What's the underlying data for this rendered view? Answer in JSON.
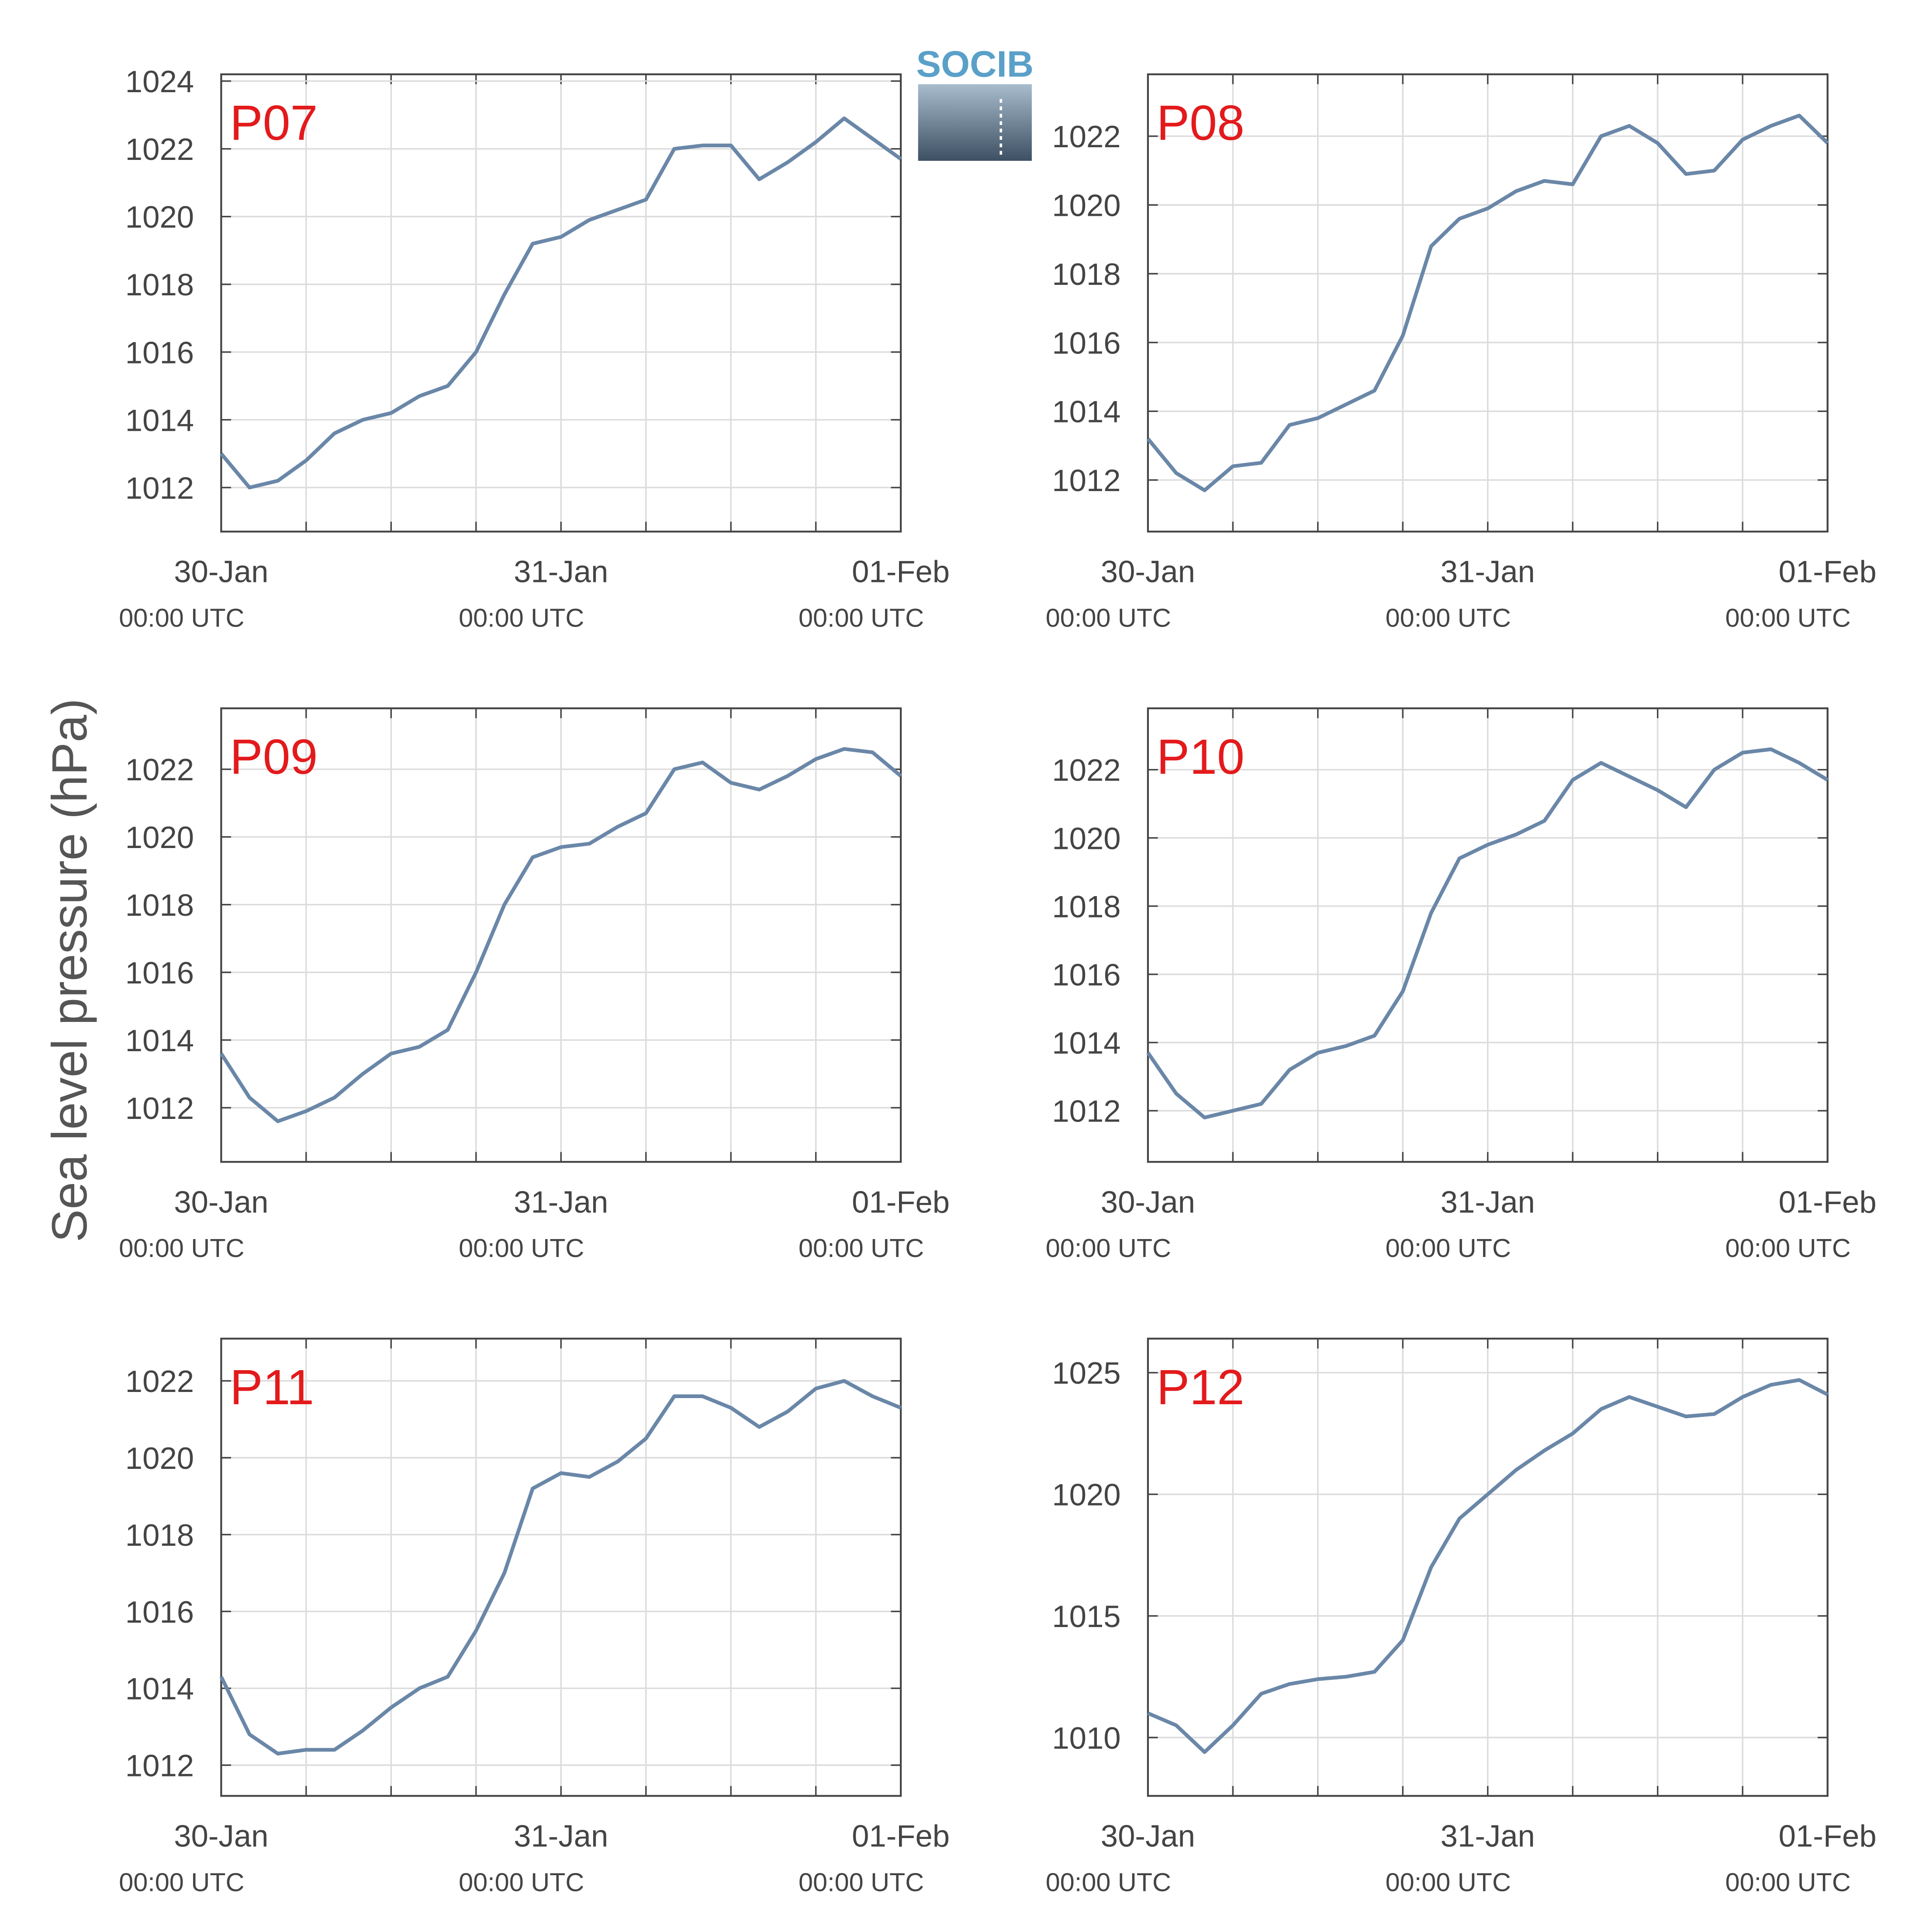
{
  "ylabel": "Sea level pressure (hPa)",
  "logo": "SOCIB",
  "chart_data": [
    {
      "type": "line",
      "title": "P07",
      "color": "#6a87a8",
      "x": [
        0,
        2,
        4,
        6,
        8,
        10,
        12,
        14,
        16,
        18,
        20,
        22,
        24,
        26,
        28,
        30,
        32,
        34,
        36,
        38,
        40,
        42,
        44,
        46,
        48
      ],
      "values": [
        1013.0,
        1012.0,
        1012.2,
        1012.8,
        1013.6,
        1014.0,
        1014.2,
        1014.7,
        1015.0,
        1016.0,
        1017.7,
        1019.2,
        1019.4,
        1019.9,
        1020.2,
        1020.5,
        1022.0,
        1022.1,
        1022.1,
        1021.1,
        1021.6,
        1022.2,
        1022.9,
        1022.3,
        1021.7
      ],
      "xlim": [
        0,
        48
      ],
      "xticks": [
        {
          "value": 0,
          "label": "30-Jan"
        },
        {
          "value": 24,
          "label": "31-Jan"
        },
        {
          "value": 48,
          "label": "01-Feb"
        }
      ],
      "xtick_sublabels": [
        "00:00 UTC",
        "00:00 UTC",
        "00:00 UTC"
      ],
      "xminorticks": [
        6,
        12,
        18,
        30,
        36,
        42
      ],
      "ylim": [
        1010.7,
        1024.2
      ],
      "yticks": [
        1012,
        1014,
        1016,
        1018,
        1020,
        1022,
        1024
      ],
      "grid": true
    },
    {
      "type": "line",
      "title": "P08",
      "color": "#6a87a8",
      "x": [
        0,
        2,
        4,
        6,
        8,
        10,
        12,
        14,
        16,
        18,
        20,
        22,
        24,
        26,
        28,
        30,
        32,
        34,
        36,
        38,
        40,
        42,
        44,
        46,
        48
      ],
      "values": [
        1013.2,
        1012.2,
        1011.7,
        1012.4,
        1012.5,
        1013.6,
        1013.8,
        1014.2,
        1014.6,
        1016.2,
        1018.8,
        1019.6,
        1019.9,
        1020.4,
        1020.7,
        1020.6,
        1022.0,
        1022.3,
        1021.8,
        1020.9,
        1021.0,
        1021.9,
        1022.3,
        1022.6,
        1021.8
      ],
      "xlim": [
        0,
        48
      ],
      "xticks": [
        {
          "value": 0,
          "label": "30-Jan"
        },
        {
          "value": 24,
          "label": "31-Jan"
        },
        {
          "value": 48,
          "label": "01-Feb"
        }
      ],
      "xtick_sublabels": [
        "00:00 UTC",
        "00:00 UTC",
        "00:00 UTC"
      ],
      "xminorticks": [
        6,
        12,
        18,
        30,
        36,
        42
      ],
      "ylim": [
        1010.5,
        1023.8
      ],
      "yticks": [
        1012,
        1014,
        1016,
        1018,
        1020,
        1022
      ],
      "grid": true
    },
    {
      "type": "line",
      "title": "P09",
      "color": "#6a87a8",
      "x": [
        0,
        2,
        4,
        6,
        8,
        10,
        12,
        14,
        16,
        18,
        20,
        22,
        24,
        26,
        28,
        30,
        32,
        34,
        36,
        38,
        40,
        42,
        44,
        46,
        48
      ],
      "values": [
        1013.6,
        1012.3,
        1011.6,
        1011.9,
        1012.3,
        1013.0,
        1013.6,
        1013.8,
        1014.3,
        1016.0,
        1018.0,
        1019.4,
        1019.7,
        1019.8,
        1020.3,
        1020.7,
        1022.0,
        1022.2,
        1021.6,
        1021.4,
        1021.8,
        1022.3,
        1022.6,
        1022.5,
        1021.8
      ],
      "xlim": [
        0,
        48
      ],
      "xticks": [
        {
          "value": 0,
          "label": "30-Jan"
        },
        {
          "value": 24,
          "label": "31-Jan"
        },
        {
          "value": 48,
          "label": "01-Feb"
        }
      ],
      "xtick_sublabels": [
        "00:00 UTC",
        "00:00 UTC",
        "00:00 UTC"
      ],
      "xminorticks": [
        6,
        12,
        18,
        30,
        36,
        42
      ],
      "ylim": [
        1010.4,
        1023.8
      ],
      "yticks": [
        1012,
        1014,
        1016,
        1018,
        1020,
        1022
      ],
      "grid": true
    },
    {
      "type": "line",
      "title": "P10",
      "color": "#6a87a8",
      "x": [
        0,
        2,
        4,
        6,
        8,
        10,
        12,
        14,
        16,
        18,
        20,
        22,
        24,
        26,
        28,
        30,
        32,
        34,
        36,
        38,
        40,
        42,
        44,
        46,
        48
      ],
      "values": [
        1013.7,
        1012.5,
        1011.8,
        1012.0,
        1012.2,
        1013.2,
        1013.7,
        1013.9,
        1014.2,
        1015.5,
        1017.8,
        1019.4,
        1019.8,
        1020.1,
        1020.5,
        1021.7,
        1022.2,
        1021.8,
        1021.4,
        1020.9,
        1022.0,
        1022.5,
        1022.6,
        1022.2,
        1021.7
      ],
      "xlim": [
        0,
        48
      ],
      "xticks": [
        {
          "value": 0,
          "label": "30-Jan"
        },
        {
          "value": 24,
          "label": "31-Jan"
        },
        {
          "value": 48,
          "label": "01-Feb"
        }
      ],
      "xtick_sublabels": [
        "00:00 UTC",
        "00:00 UTC",
        "00:00 UTC"
      ],
      "xminorticks": [
        6,
        12,
        18,
        30,
        36,
        42
      ],
      "ylim": [
        1010.5,
        1023.8
      ],
      "yticks": [
        1012,
        1014,
        1016,
        1018,
        1020,
        1022
      ],
      "grid": true
    },
    {
      "type": "line",
      "title": "P11",
      "color": "#6a87a8",
      "x": [
        0,
        2,
        4,
        6,
        8,
        10,
        12,
        14,
        16,
        18,
        20,
        22,
        24,
        26,
        28,
        30,
        32,
        34,
        36,
        38,
        40,
        42,
        44,
        46,
        48
      ],
      "values": [
        1014.3,
        1012.8,
        1012.3,
        1012.4,
        1012.4,
        1012.9,
        1013.5,
        1014.0,
        1014.3,
        1015.5,
        1017.0,
        1019.2,
        1019.6,
        1019.5,
        1019.9,
        1020.5,
        1021.6,
        1021.6,
        1021.3,
        1020.8,
        1021.2,
        1021.8,
        1022.0,
        1021.6,
        1021.3
      ],
      "xlim": [
        0,
        48
      ],
      "xticks": [
        {
          "value": 0,
          "label": "30-Jan"
        },
        {
          "value": 24,
          "label": "31-Jan"
        },
        {
          "value": 48,
          "label": "01-Feb"
        }
      ],
      "xtick_sublabels": [
        "00:00 UTC",
        "00:00 UTC",
        "00:00 UTC"
      ],
      "xminorticks": [
        6,
        12,
        18,
        30,
        36,
        42
      ],
      "ylim": [
        1011.2,
        1023.1
      ],
      "yticks": [
        1012,
        1014,
        1016,
        1018,
        1020,
        1022
      ],
      "grid": true
    },
    {
      "type": "line",
      "title": "P12",
      "color": "#6a87a8",
      "x": [
        0,
        2,
        4,
        6,
        8,
        10,
        12,
        14,
        16,
        18,
        20,
        22,
        24,
        26,
        28,
        30,
        32,
        34,
        36,
        38,
        40,
        42,
        44,
        46,
        48
      ],
      "values": [
        1011.0,
        1010.5,
        1009.4,
        1010.5,
        1011.8,
        1012.2,
        1012.4,
        1012.5,
        1012.7,
        1014.0,
        1017.0,
        1019.0,
        1020.0,
        1021.0,
        1021.8,
        1022.5,
        1023.5,
        1024.0,
        1023.6,
        1023.2,
        1023.3,
        1024.0,
        1024.5,
        1024.7,
        1024.1
      ],
      "xlim": [
        0,
        48
      ],
      "xticks": [
        {
          "value": 0,
          "label": "30-Jan"
        },
        {
          "value": 24,
          "label": "31-Jan"
        },
        {
          "value": 48,
          "label": "01-Feb"
        }
      ],
      "xtick_sublabels": [
        "00:00 UTC",
        "00:00 UTC",
        "00:00 UTC"
      ],
      "xminorticks": [
        6,
        12,
        18,
        30,
        36,
        42
      ],
      "ylim": [
        1007.6,
        1026.4
      ],
      "yticks": [
        1010,
        1015,
        1020,
        1025
      ],
      "grid": true
    }
  ]
}
